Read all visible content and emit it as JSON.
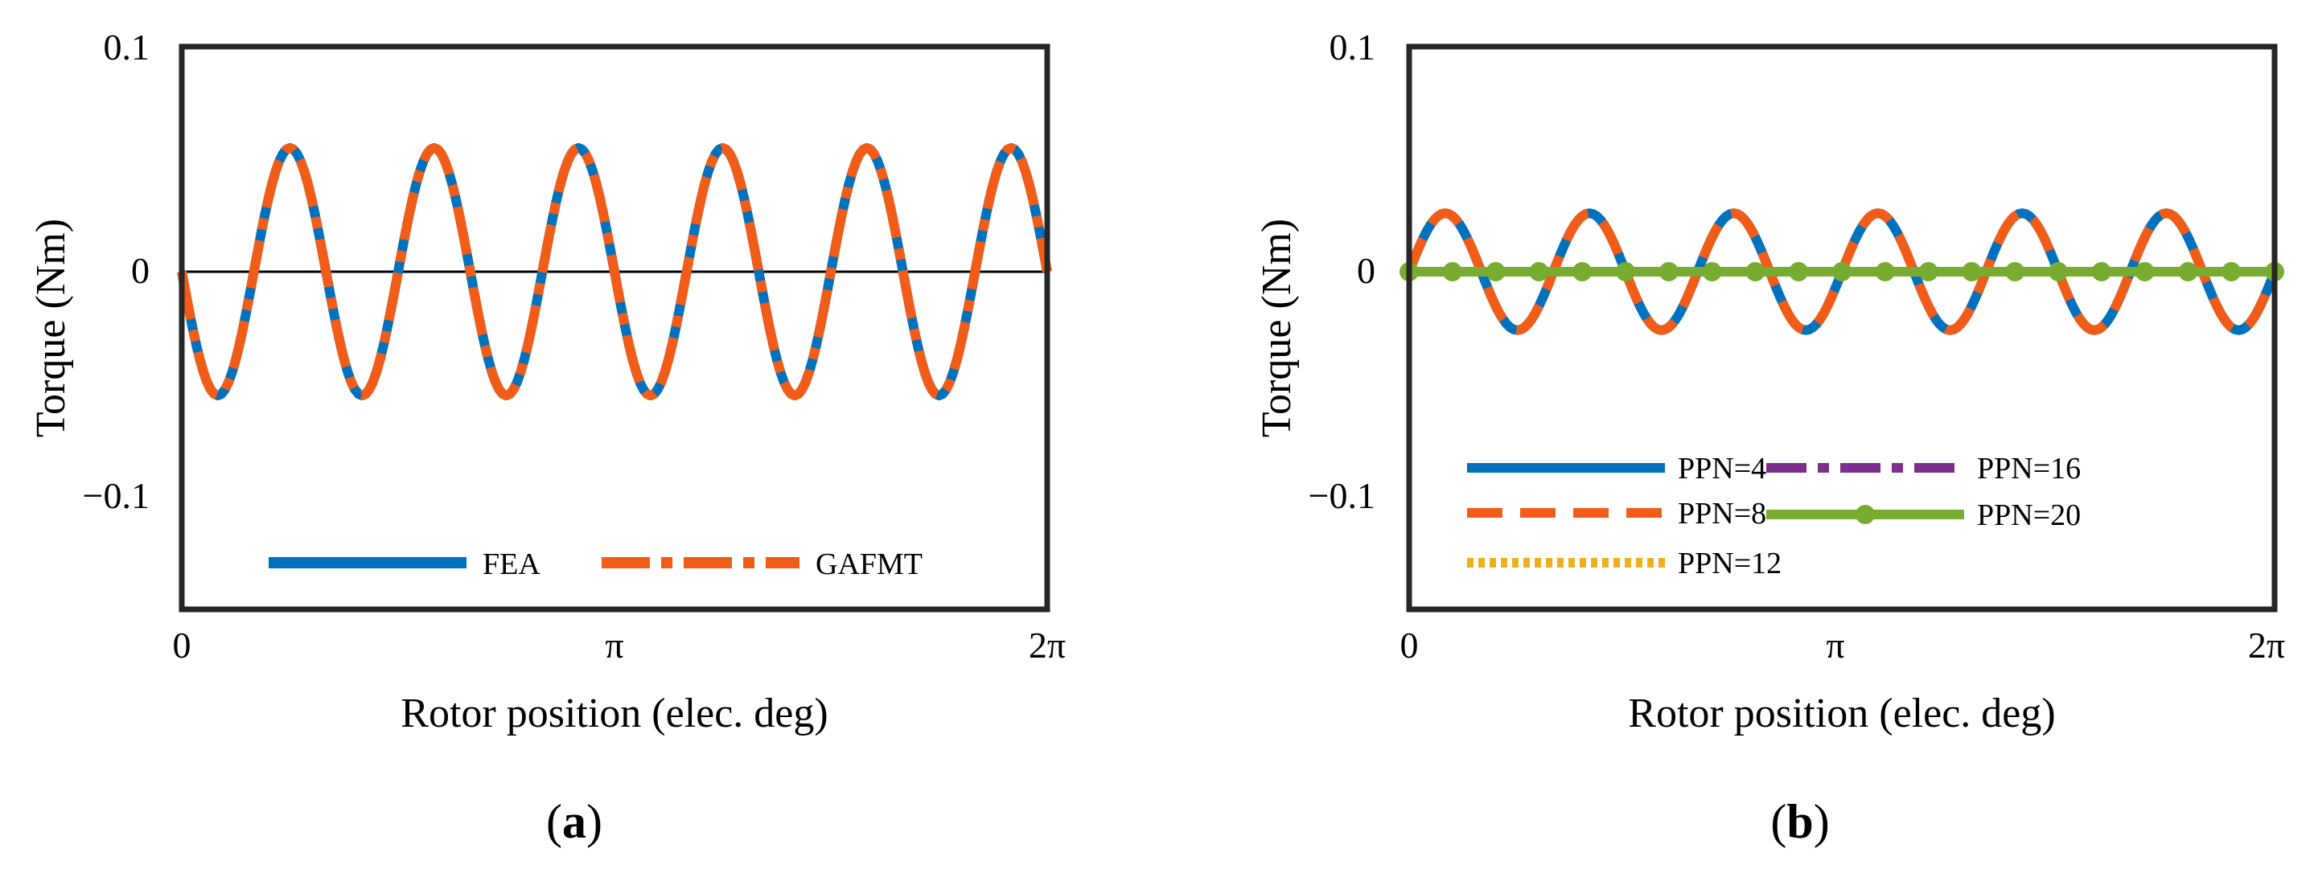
{
  "chart_data": [
    {
      "type": "line",
      "panel": "a",
      "panel_label": "a",
      "xlabel": "Rotor position (elec. deg)",
      "ylabel": "Torque (Nm)",
      "x_ticks": [
        "0",
        "π",
        "2π"
      ],
      "y_ticks": [
        "0.1",
        "0",
        "−0.1"
      ],
      "xlim": [
        0,
        6.2832
      ],
      "ylim": [
        -0.15,
        0.1
      ],
      "legend_location": "bottom",
      "zero_line": true,
      "series": [
        {
          "name": "FEA",
          "color": "#0072BD",
          "style": "solid",
          "amplitude": 0.055,
          "periods": 6,
          "phase": "negative-first"
        },
        {
          "name": "GAFMT",
          "color": "#F25C19",
          "style": "dashdot",
          "amplitude": 0.055,
          "periods": 6,
          "phase": "negative-first"
        }
      ]
    },
    {
      "type": "line",
      "panel": "b",
      "panel_label": "b",
      "xlabel": "Rotor position (elec. deg)",
      "ylabel": "Torque (Nm)",
      "x_ticks": [
        "0",
        "π",
        "2π"
      ],
      "y_ticks": [
        "0.1",
        "0",
        "−0.1"
      ],
      "xlim": [
        0,
        6.2832
      ],
      "ylim": [
        -0.15,
        0.1
      ],
      "legend_location": "bottom",
      "zero_line": true,
      "series": [
        {
          "name": "PPN=4",
          "color": "#0072BD",
          "style": "solid",
          "amplitude": 0.026,
          "periods": 6,
          "phase": "positive-first"
        },
        {
          "name": "PPN=8",
          "color": "#F25C19",
          "style": "dashed",
          "amplitude": 0.026,
          "periods": 6,
          "phase": "positive-first"
        },
        {
          "name": "PPN=12",
          "color": "#EDB120",
          "style": "dotted",
          "amplitude": 0.0,
          "periods": 6,
          "phase": "positive-first"
        },
        {
          "name": "PPN=16",
          "color": "#7E2F8E",
          "style": "dashdot",
          "amplitude": 0.0,
          "periods": 6,
          "phase": "positive-first"
        },
        {
          "name": "PPN=20",
          "color": "#77AC30",
          "style": "solid-marker",
          "amplitude": 0.0,
          "periods": 6,
          "phase": "positive-first"
        }
      ]
    }
  ]
}
